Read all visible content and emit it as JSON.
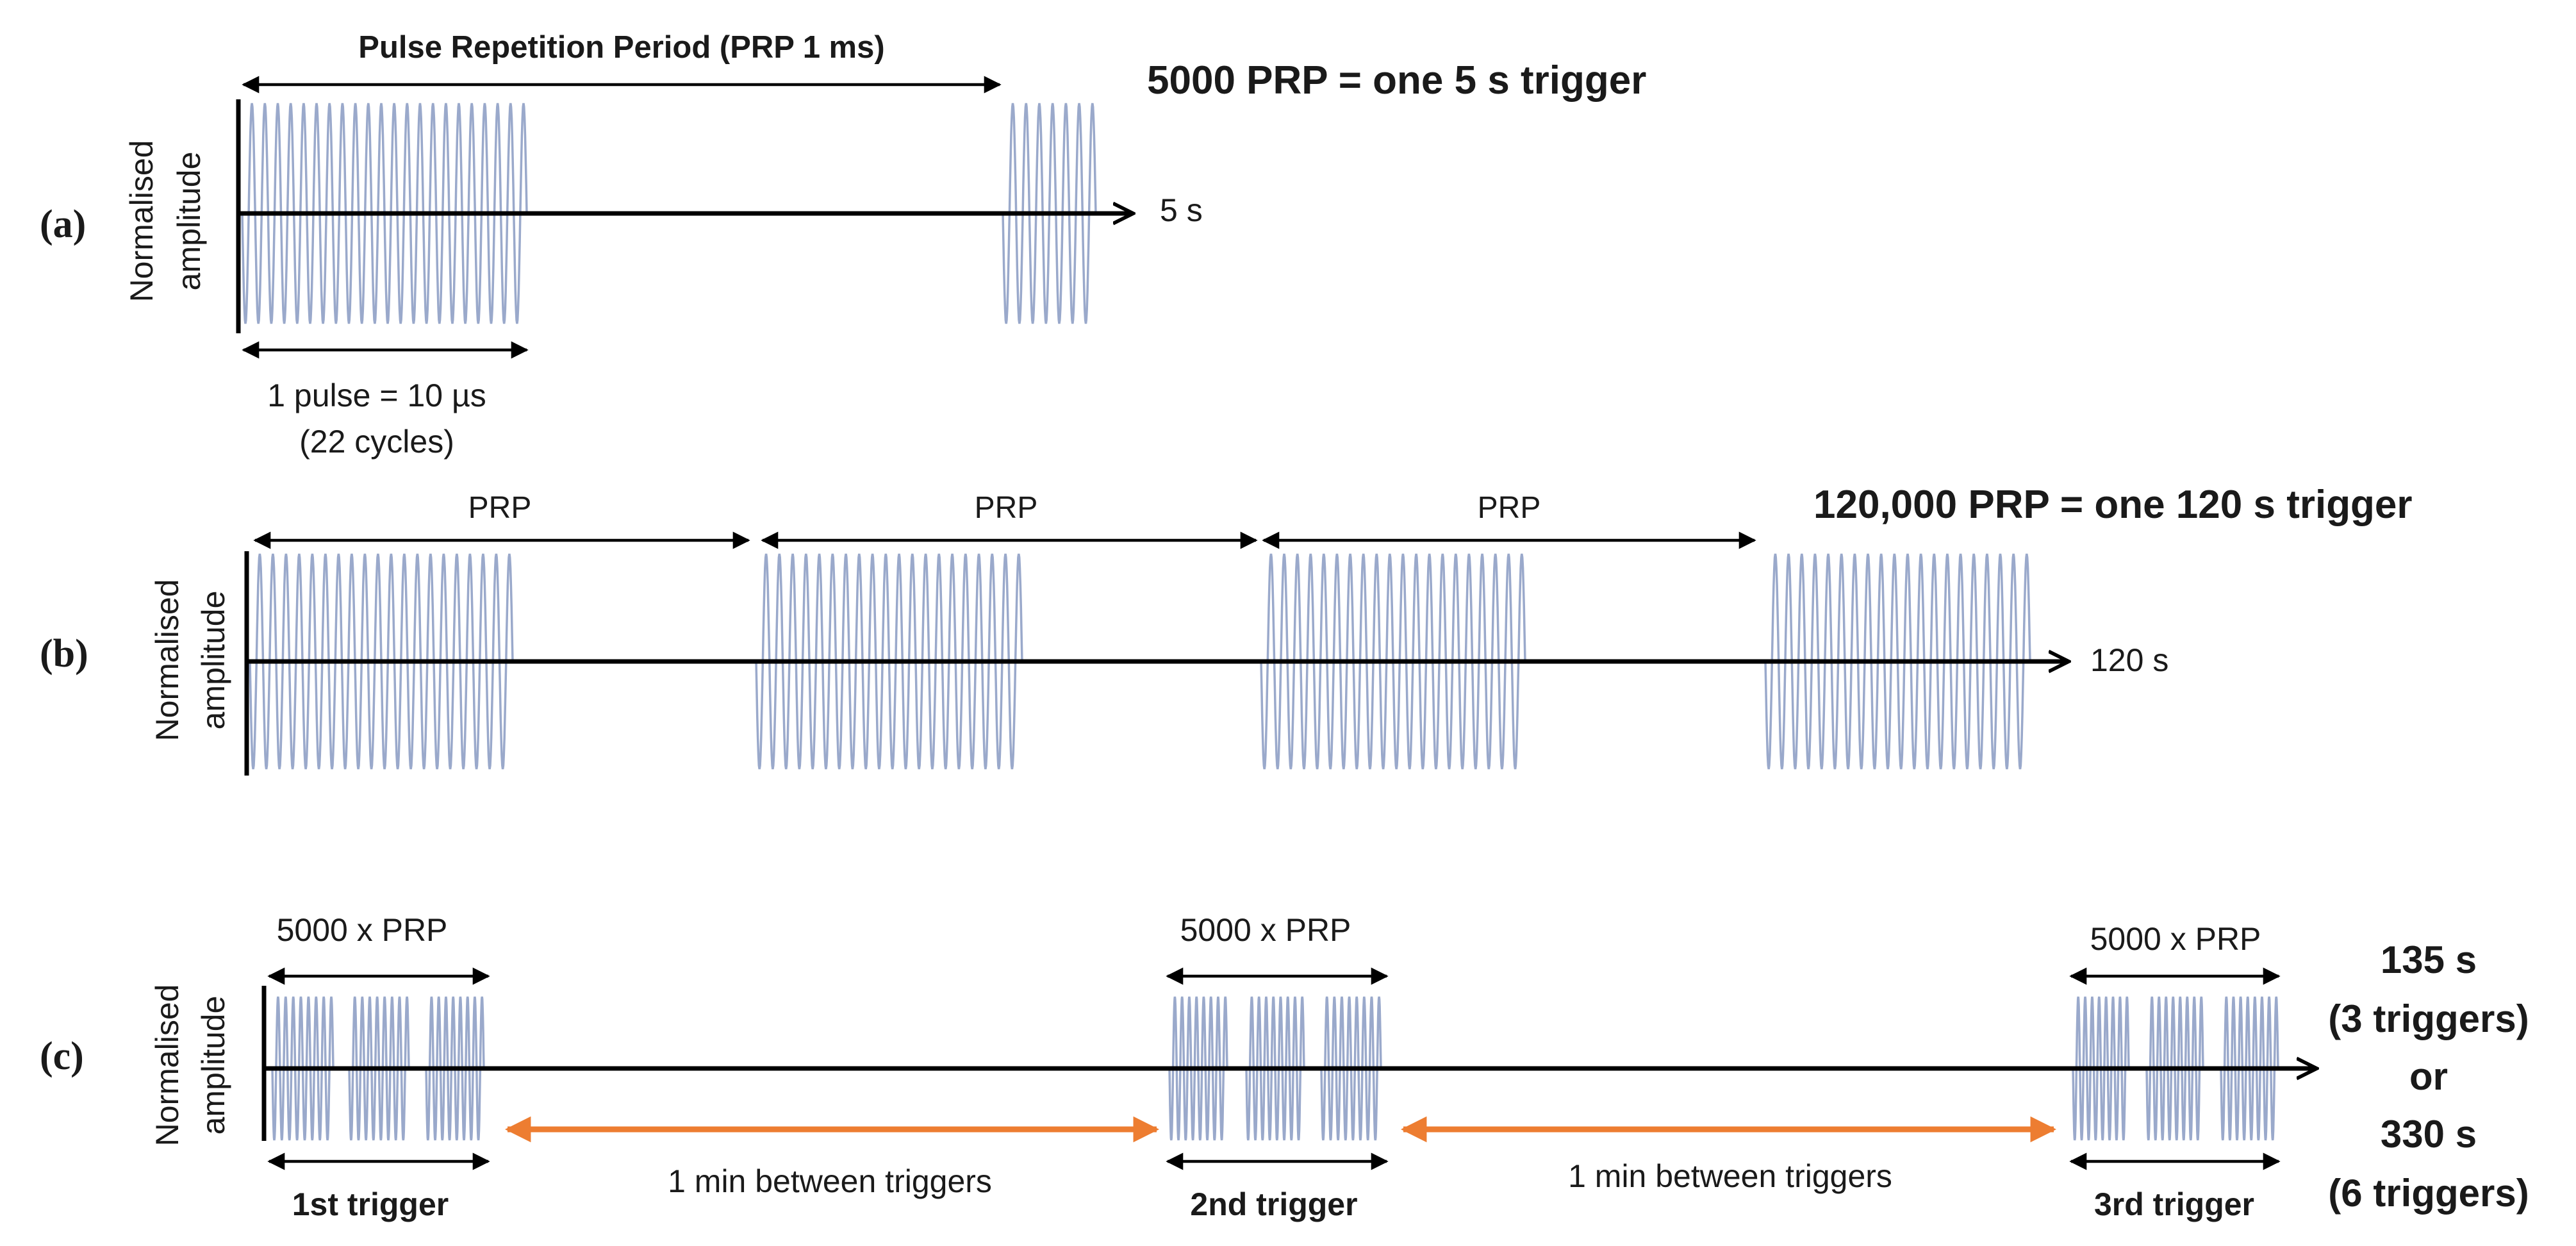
{
  "colors": {
    "wave": "#9aa9cb",
    "axis": "#000000",
    "gap_arrow": "#ed7d31"
  },
  "panel_a": {
    "panel_label": "(a)",
    "y_label_1": "Normalised",
    "y_label_2": "amplitude",
    "prp_label": "Pulse Repetition Period (PRP 1 ms)",
    "summary": "5000 PRP = one 5 s trigger",
    "axis_end": "5 s",
    "pulse_label_1": "1 pulse = 10 µs",
    "pulse_label_2": "(22 cycles)"
  },
  "panel_b": {
    "panel_label": "(b)",
    "y_label_1": "Normalised",
    "y_label_2": "amplitude",
    "prp_labels": [
      "PRP",
      "PRP",
      "PRP"
    ],
    "summary": "120,000 PRP = one 120 s trigger",
    "axis_end": "120 s"
  },
  "panel_c": {
    "panel_label": "(c)",
    "y_label_1": "Normalised",
    "y_label_2": "amplitude",
    "group_labels": [
      "5000 x PRP",
      "5000 x PRP",
      "5000 x PRP"
    ],
    "trigger_labels": [
      "1st trigger",
      "2nd trigger",
      "3rd trigger"
    ],
    "gap_labels": [
      "1 min between triggers",
      "1 min between triggers"
    ],
    "summary_lines": [
      "135 s",
      "(3 triggers)",
      "or",
      "330 s",
      "(6 triggers)"
    ]
  }
}
